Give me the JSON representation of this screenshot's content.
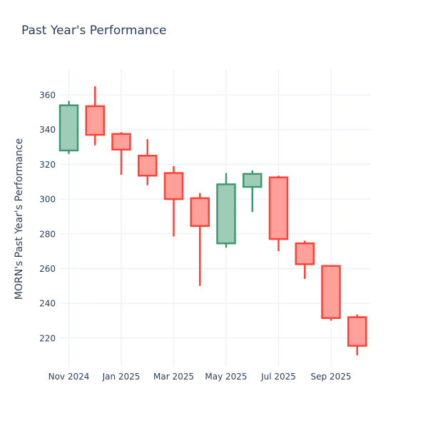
{
  "title": "Past Year's Performance",
  "y_axis_title": "MORN's Past Year's Performance",
  "colors": {
    "increasing_line": "#3D9970",
    "increasing_fill": "#9ECCB7",
    "decreasing_line": "#FF4136",
    "decreasing_fill": "#FFA09A",
    "grid": "#EBF0F8",
    "text": "#2a3f5f",
    "background": "#ffffff"
  },
  "chart_data": {
    "type": "candlestick",
    "title": "Past Year's Performance",
    "xlabel": "",
    "ylabel": "MORN's Past Year's Performance",
    "categories": [
      "Nov 2024",
      "Dec 2024",
      "Jan 2025",
      "Feb 2025",
      "Mar 2025",
      "Apr 2025",
      "May 2025",
      "Jun 2025",
      "Jul 2025",
      "Aug 2025",
      "Sep 2025",
      "Oct 2025"
    ],
    "series": [
      {
        "name": "MORN",
        "open": [
          328,
          353.5,
          337.5,
          325,
          315,
          300.5,
          274.5,
          307,
          312.5,
          274.5,
          261.5,
          232
        ],
        "high": [
          356.5,
          365,
          338.5,
          334.5,
          319,
          303.5,
          315,
          316.5,
          313.5,
          276,
          261.5,
          233.5
        ],
        "low": [
          326,
          331,
          314,
          308,
          278.5,
          250,
          272,
          292.5,
          270,
          254,
          230,
          210
        ],
        "close": [
          354,
          337,
          328.5,
          313.5,
          300,
          284.5,
          308.5,
          314.5,
          277,
          262.5,
          231.5,
          215.5
        ]
      }
    ],
    "x_tick_labels": [
      "Nov 2024",
      "Jan 2025",
      "Mar 2025",
      "May 2025",
      "Jul 2025",
      "Sep 2025"
    ],
    "x_tick_indices": [
      0,
      2,
      4,
      6,
      8,
      10
    ],
    "y_ticks": [
      220,
      240,
      260,
      280,
      300,
      320,
      340,
      360
    ],
    "ylim": [
      203.5,
      374.8
    ],
    "grid": true,
    "legend": "none"
  }
}
